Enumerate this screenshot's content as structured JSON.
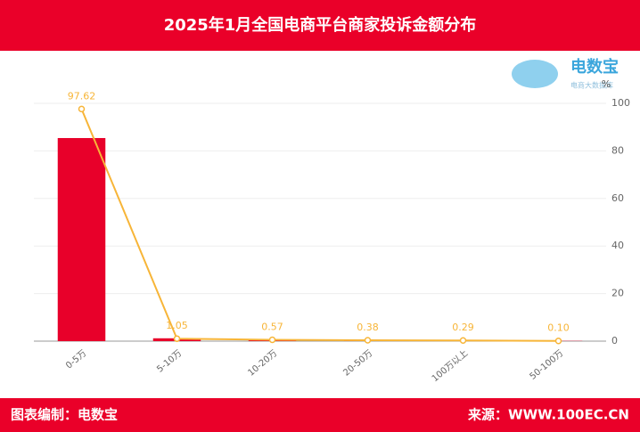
{
  "chart_data": {
    "type": "bar",
    "title": "2025年1月全国电商平台商家投诉金额分布",
    "categories": [
      "0-5万",
      "5-10万",
      "10-20万",
      "20-50万",
      "100万以上",
      "50-100万"
    ],
    "series": [
      {
        "type": "bar",
        "color": "#e8002a",
        "values": [
          85.4,
          1.2,
          0.6,
          0.4,
          0.3,
          0.1
        ]
      },
      {
        "type": "line",
        "color": "#f7b538",
        "values": [
          97.62,
          1.05,
          0.57,
          0.38,
          0.29,
          0.1
        ],
        "value_labels": [
          "97.62",
          "1.05",
          "0.57",
          "0.38",
          "0.29",
          "0.10"
        ]
      }
    ],
    "ylim": [
      0,
      100
    ],
    "yticks": [
      0,
      20,
      40,
      60,
      80,
      100
    ],
    "y_axis_position": "right",
    "y_unit": "%",
    "grid": true,
    "footer_left": "图表编制：电数宝",
    "footer_right": "来源：WWW.100EC.CN",
    "logo": {
      "name": "电数宝",
      "tagline": "电商大数据库"
    }
  }
}
